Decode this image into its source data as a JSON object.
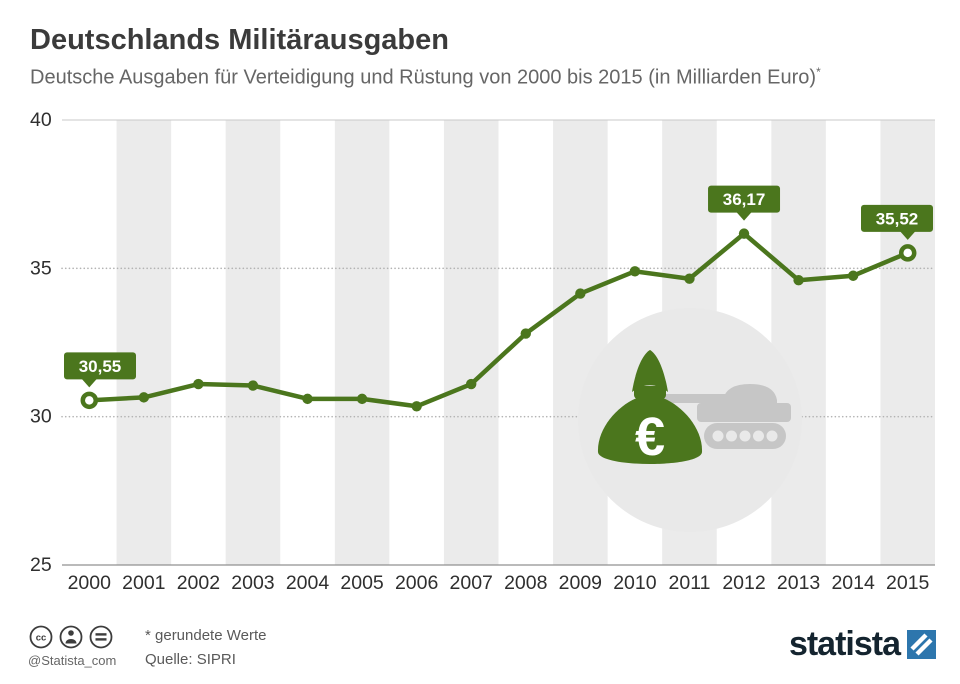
{
  "header": {
    "title": "Deutschlands Militärausgaben",
    "subtitle": "Deutsche Ausgaben für Verteidigung und Rüstung von 2000 bis 2015 (in Milliarden Euro)",
    "note_marker": "*"
  },
  "chart_data": {
    "type": "line",
    "title": "Deutschlands Militärausgaben",
    "subtitle": "Deutsche Ausgaben für Verteidigung und Rüstung von 2000 bis 2015 (in Milliarden Euro)",
    "categories": [
      "2000",
      "2001",
      "2002",
      "2003",
      "2004",
      "2005",
      "2006",
      "2007",
      "2008",
      "2009",
      "2010",
      "2011",
      "2012",
      "2013",
      "2014",
      "2015"
    ],
    "values": [
      30.55,
      30.65,
      31.1,
      31.05,
      30.6,
      30.6,
      30.35,
      31.1,
      32.8,
      34.15,
      34.9,
      34.65,
      36.17,
      34.6,
      34.75,
      35.52
    ],
    "ylim": [
      25,
      40
    ],
    "yticks": [
      40,
      35,
      30,
      25
    ],
    "legend_position": "none",
    "grid": "dotted horizontal lines at 30 and 35, alternating vertical stripes per year",
    "annotations": [
      {
        "category": "2000",
        "label": "30,55"
      },
      {
        "category": "2012",
        "label": "36,17"
      },
      {
        "category": "2015",
        "label": "35,52"
      }
    ],
    "open_markers": [
      "2000",
      "2015"
    ],
    "colors": {
      "line": "#4b761d",
      "stripe": "#ebebeb",
      "axis": "#919191",
      "top_line": "#c8c8c8",
      "grid_dot": "#b3b3b3",
      "tick_text": "#2f2f2f",
      "label_bg": "#4b761d",
      "label_text": "#ffffff"
    }
  },
  "illustration": {
    "euro_symbol": "€",
    "euro_color": "#ffffff",
    "circle_fill": "#e9e9e9",
    "tank_fill": "#c6c6c6",
    "bag_fill": "#4b761d"
  },
  "footer": {
    "handle": "@Statista_com",
    "note": "* gerundete Werte",
    "source": "Quelle: SIPRI",
    "logo_text": "statista",
    "logo_square_color": "#2d76ad",
    "cc_icon_color": "#3d3d3d"
  }
}
